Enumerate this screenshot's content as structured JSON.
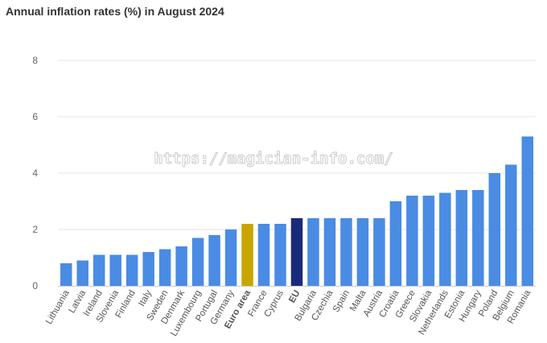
{
  "chart_data": {
    "type": "bar",
    "title": "Annual inflation rates (%) in August 2024",
    "xlabel": "",
    "ylabel": "",
    "ylim": [
      0,
      8
    ],
    "yticks": [
      0,
      2,
      4,
      6,
      8
    ],
    "grid": true,
    "legend": "none",
    "categories": [
      "Lithuania",
      "Latvia",
      "Ireland",
      "Slovenia",
      "Finland",
      "Italy",
      "Sweden",
      "Denmark",
      "Luxembourg",
      "Portugal",
      "Germany",
      "Euro area",
      "France",
      "Cyprus",
      "EU",
      "Bulgaria",
      "Czechia",
      "Spain",
      "Malta",
      "Austria",
      "Croatia",
      "Greece",
      "Slovakia",
      "Netherlands",
      "Estonia",
      "Hungary",
      "Poland",
      "Belgium",
      "Romania"
    ],
    "values": [
      0.8,
      0.9,
      1.1,
      1.1,
      1.1,
      1.2,
      1.3,
      1.4,
      1.7,
      1.8,
      2.0,
      2.2,
      2.2,
      2.2,
      2.4,
      2.4,
      2.4,
      2.4,
      2.4,
      2.4,
      3.0,
      3.2,
      3.2,
      3.3,
      3.4,
      3.4,
      4.0,
      4.3,
      5.3
    ],
    "bold_categories": [
      "Euro area",
      "EU"
    ],
    "colors": {
      "default": "#4a8be4",
      "highlight": {
        "Euro area": "#c9a500",
        "EU": "#1a2a7a"
      }
    }
  },
  "watermark": "https://magician-info.com/"
}
